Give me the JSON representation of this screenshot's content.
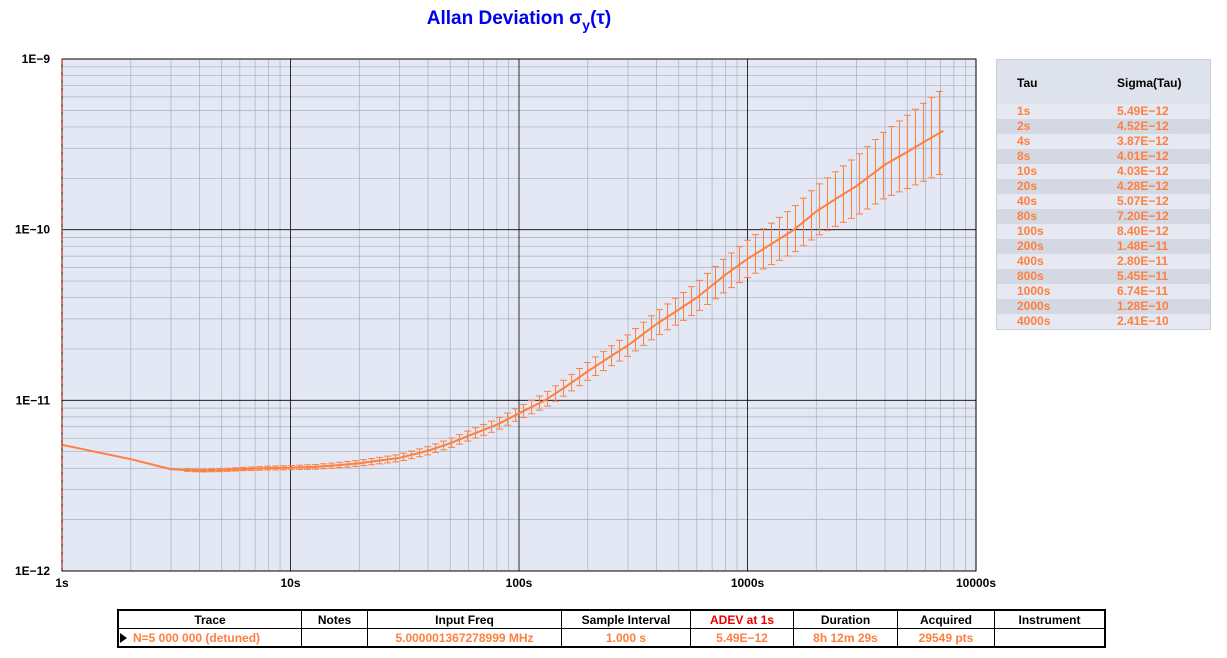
{
  "chart_data": {
    "type": "line",
    "title_main": "Allan Deviation σ",
    "title_sub": "y",
    "title_suffix": "(τ)",
    "x_scale": "log",
    "y_scale": "log",
    "xlim": [
      1,
      10000
    ],
    "ylim": [
      1e-12,
      1e-09
    ],
    "x_tick_values": [
      1,
      10,
      100,
      1000,
      10000
    ],
    "x_tick_labels": [
      "1s",
      "10s",
      "100s",
      "1000s",
      "10000s"
    ],
    "y_tick_values": [
      1e-12,
      1e-11,
      1e-10,
      1e-09
    ],
    "y_tick_labels": [
      "1E−12",
      "1E−11",
      "1E−10",
      "1E−9"
    ],
    "grid": true,
    "colors": {
      "series": "#ff7f3f",
      "plot_background": "#e3e8f4",
      "title": "#0000ee",
      "major_grid": "#000000",
      "minor_grid": "#a8b0be"
    },
    "series": [
      {
        "x": [
          1,
          2,
          3,
          4,
          5,
          6,
          8,
          10,
          13,
          16,
          20,
          25,
          30,
          40,
          50,
          60,
          80,
          100,
          130,
          160,
          200,
          250,
          300,
          400,
          500,
          600,
          800,
          1000,
          1300,
          1600,
          2000,
          2500,
          3000,
          4000,
          5000,
          6000,
          7200
        ],
        "y": [
          5.49e-12,
          4.52e-12,
          3.95e-12,
          3.87e-12,
          3.9e-12,
          3.95e-12,
          4.01e-12,
          4.03e-12,
          4.08e-12,
          4.17e-12,
          4.28e-12,
          4.45e-12,
          4.6e-12,
          5.07e-12,
          5.6e-12,
          6.2e-12,
          7.2e-12,
          8.4e-12,
          1e-11,
          1.2e-11,
          1.48e-11,
          1.8e-11,
          2.1e-11,
          2.8e-11,
          3.4e-11,
          4e-11,
          5.45e-11,
          6.74e-11,
          8.4e-11,
          1e-10,
          1.28e-10,
          1.55e-10,
          1.8e-10,
          2.41e-10,
          2.85e-10,
          3.3e-10,
          3.8e-10
        ]
      }
    ]
  },
  "table": {
    "headers": [
      "Tau",
      "Sigma(Tau)"
    ],
    "rows": [
      [
        "1s",
        "5.49E−12"
      ],
      [
        "2s",
        "4.52E−12"
      ],
      [
        "4s",
        "3.87E−12"
      ],
      [
        "8s",
        "4.01E−12"
      ],
      [
        "10s",
        "4.03E−12"
      ],
      [
        "20s",
        "4.28E−12"
      ],
      [
        "40s",
        "5.07E−12"
      ],
      [
        "80s",
        "7.20E−12"
      ],
      [
        "100s",
        "8.40E−12"
      ],
      [
        "200s",
        "1.48E−11"
      ],
      [
        "400s",
        "2.80E−11"
      ],
      [
        "800s",
        "5.45E−11"
      ],
      [
        "1000s",
        "6.74E−11"
      ],
      [
        "2000s",
        "1.28E−10"
      ],
      [
        "4000s",
        "2.41E−10"
      ]
    ]
  },
  "info": {
    "headers": [
      "Trace",
      "Notes",
      "Input Freq",
      "Sample Interval",
      "ADEV at 1s",
      "Duration",
      "Acquired",
      "Instrument"
    ],
    "values": [
      "N=5 000 000 (detuned)",
      "",
      "5.000001367278999 MHz",
      "1.000 s",
      "5.49E−12",
      "8h 12m 29s",
      "29549 pts",
      ""
    ]
  }
}
